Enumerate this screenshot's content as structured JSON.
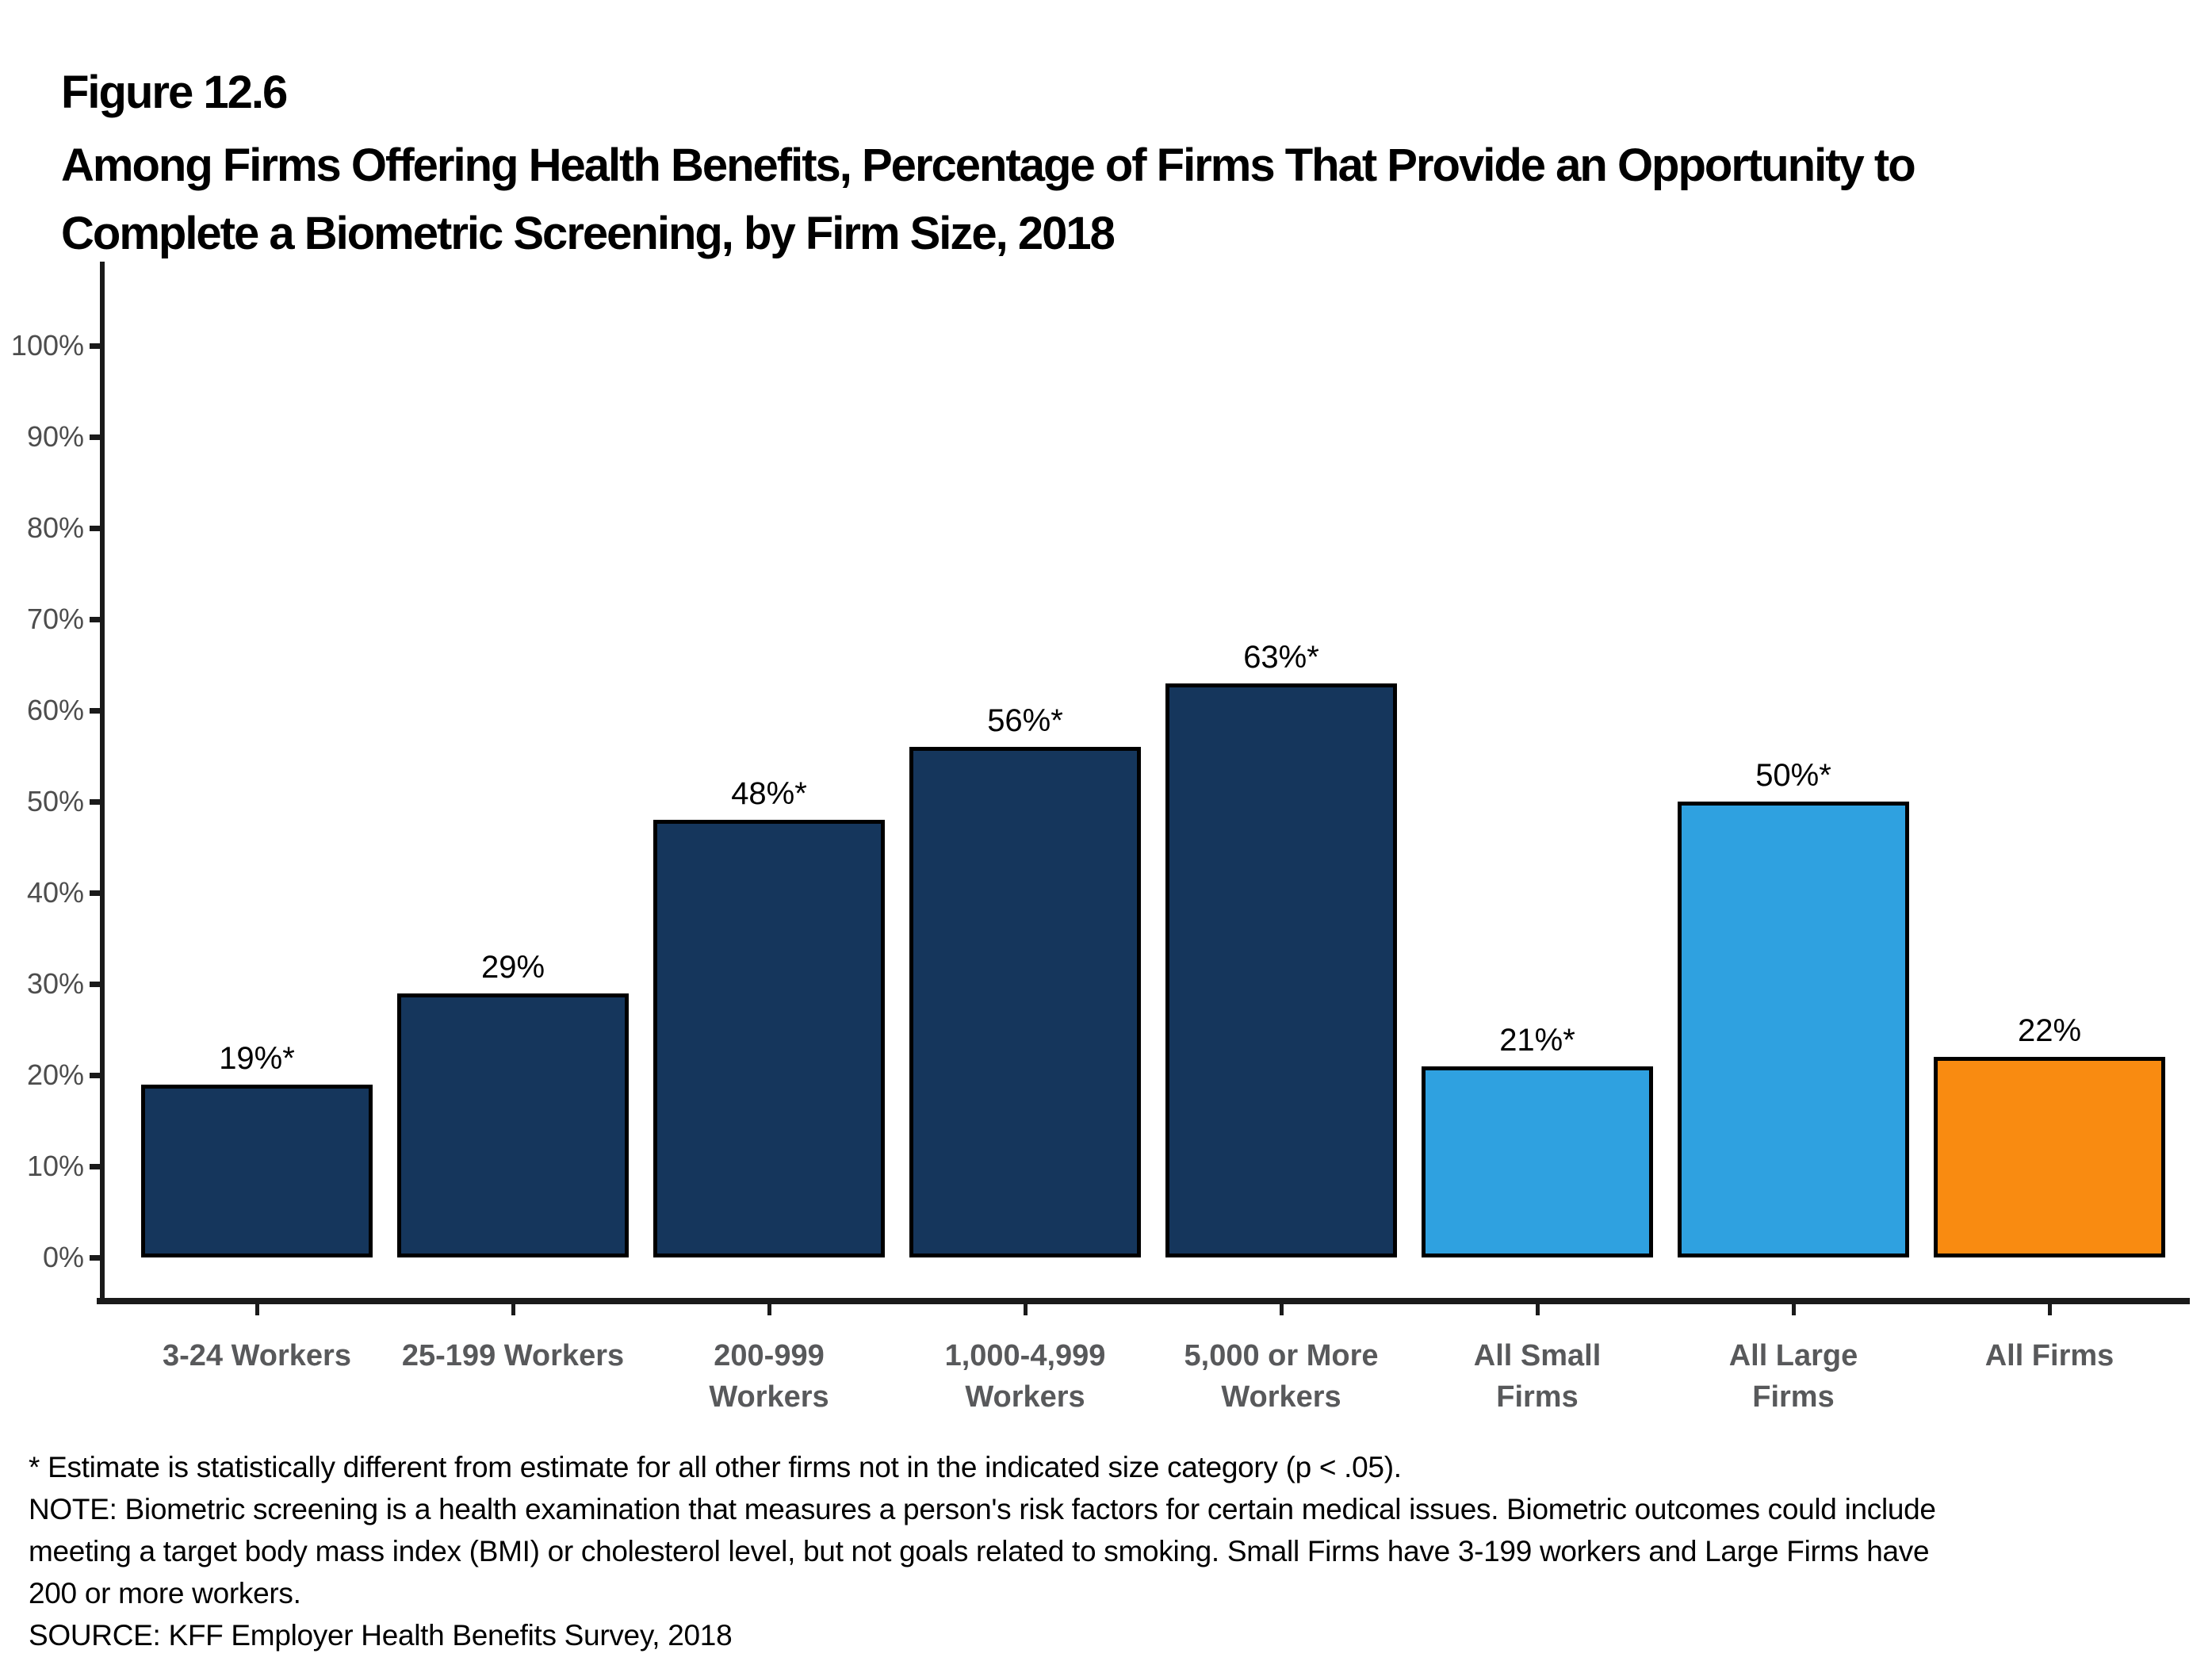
{
  "header": {
    "figure_label": "Figure 12.6",
    "title_lines": [
      "Among Firms Offering Health Benefits, Percentage of Firms That Provide an Opportunity to",
      "Complete a Biometric Screening, by Firm Size, 2018"
    ]
  },
  "chart_data": {
    "type": "bar",
    "title": "Among Firms Offering Health Benefits, Percentage of Firms That Provide an Opportunity to Complete a Biometric Screening, by Firm Size, 2018",
    "categories": [
      "3-24 Workers",
      "25-199 Workers",
      "200-999 Workers",
      "1,000-4,999 Workers",
      "5,000 or More Workers",
      "All Small Firms",
      "All Large Firms",
      "All Firms"
    ],
    "category_label_lines": [
      [
        "3-24 Workers"
      ],
      [
        "25-199 Workers"
      ],
      [
        "200-999",
        "Workers"
      ],
      [
        "1,000-4,999",
        "Workers"
      ],
      [
        "5,000 or More",
        "Workers"
      ],
      [
        "All Small",
        "Firms"
      ],
      [
        "All Large",
        "Firms"
      ],
      [
        "All Firms"
      ]
    ],
    "values": [
      19,
      29,
      48,
      56,
      63,
      21,
      50,
      22
    ],
    "value_labels": [
      "19%*",
      "29%",
      "48%*",
      "56%*",
      "63%*",
      "21%*",
      "50%*",
      "22%"
    ],
    "bar_colors": [
      "#15365c",
      "#15365c",
      "#15365c",
      "#15365c",
      "#15365c",
      "#2fa1e0",
      "#2fa1e0",
      "#f98b11"
    ],
    "xlabel": "",
    "ylabel": "",
    "ylim": [
      0,
      100
    ],
    "ytick_step": 10,
    "ytick_labels": [
      "0%",
      "10%",
      "20%",
      "30%",
      "40%",
      "50%",
      "60%",
      "70%",
      "80%",
      "90%",
      "100%"
    ],
    "grid": false,
    "legend": null
  },
  "colors": {
    "navy": "#15365c",
    "light_blue": "#2fa1e0",
    "orange": "#f98b11",
    "axis": "#1a1a1a",
    "bar_border": "#000000",
    "ytick_label": "#4d4d4d",
    "category_label": "#58595b"
  },
  "footnotes": [
    "* Estimate is statistically different from estimate for all other firms not in the indicated size category (p < .05).",
    "NOTE: Biometric screening is a health examination that measures a person's risk factors for certain medical issues. Biometric outcomes could include",
    "meeting a target body mass index (BMI) or cholesterol level, but not goals related to smoking. Small Firms have 3-199 workers and Large Firms have",
    "200 or more workers.",
    "SOURCE: KFF Employer Health Benefits Survey, 2018"
  ]
}
